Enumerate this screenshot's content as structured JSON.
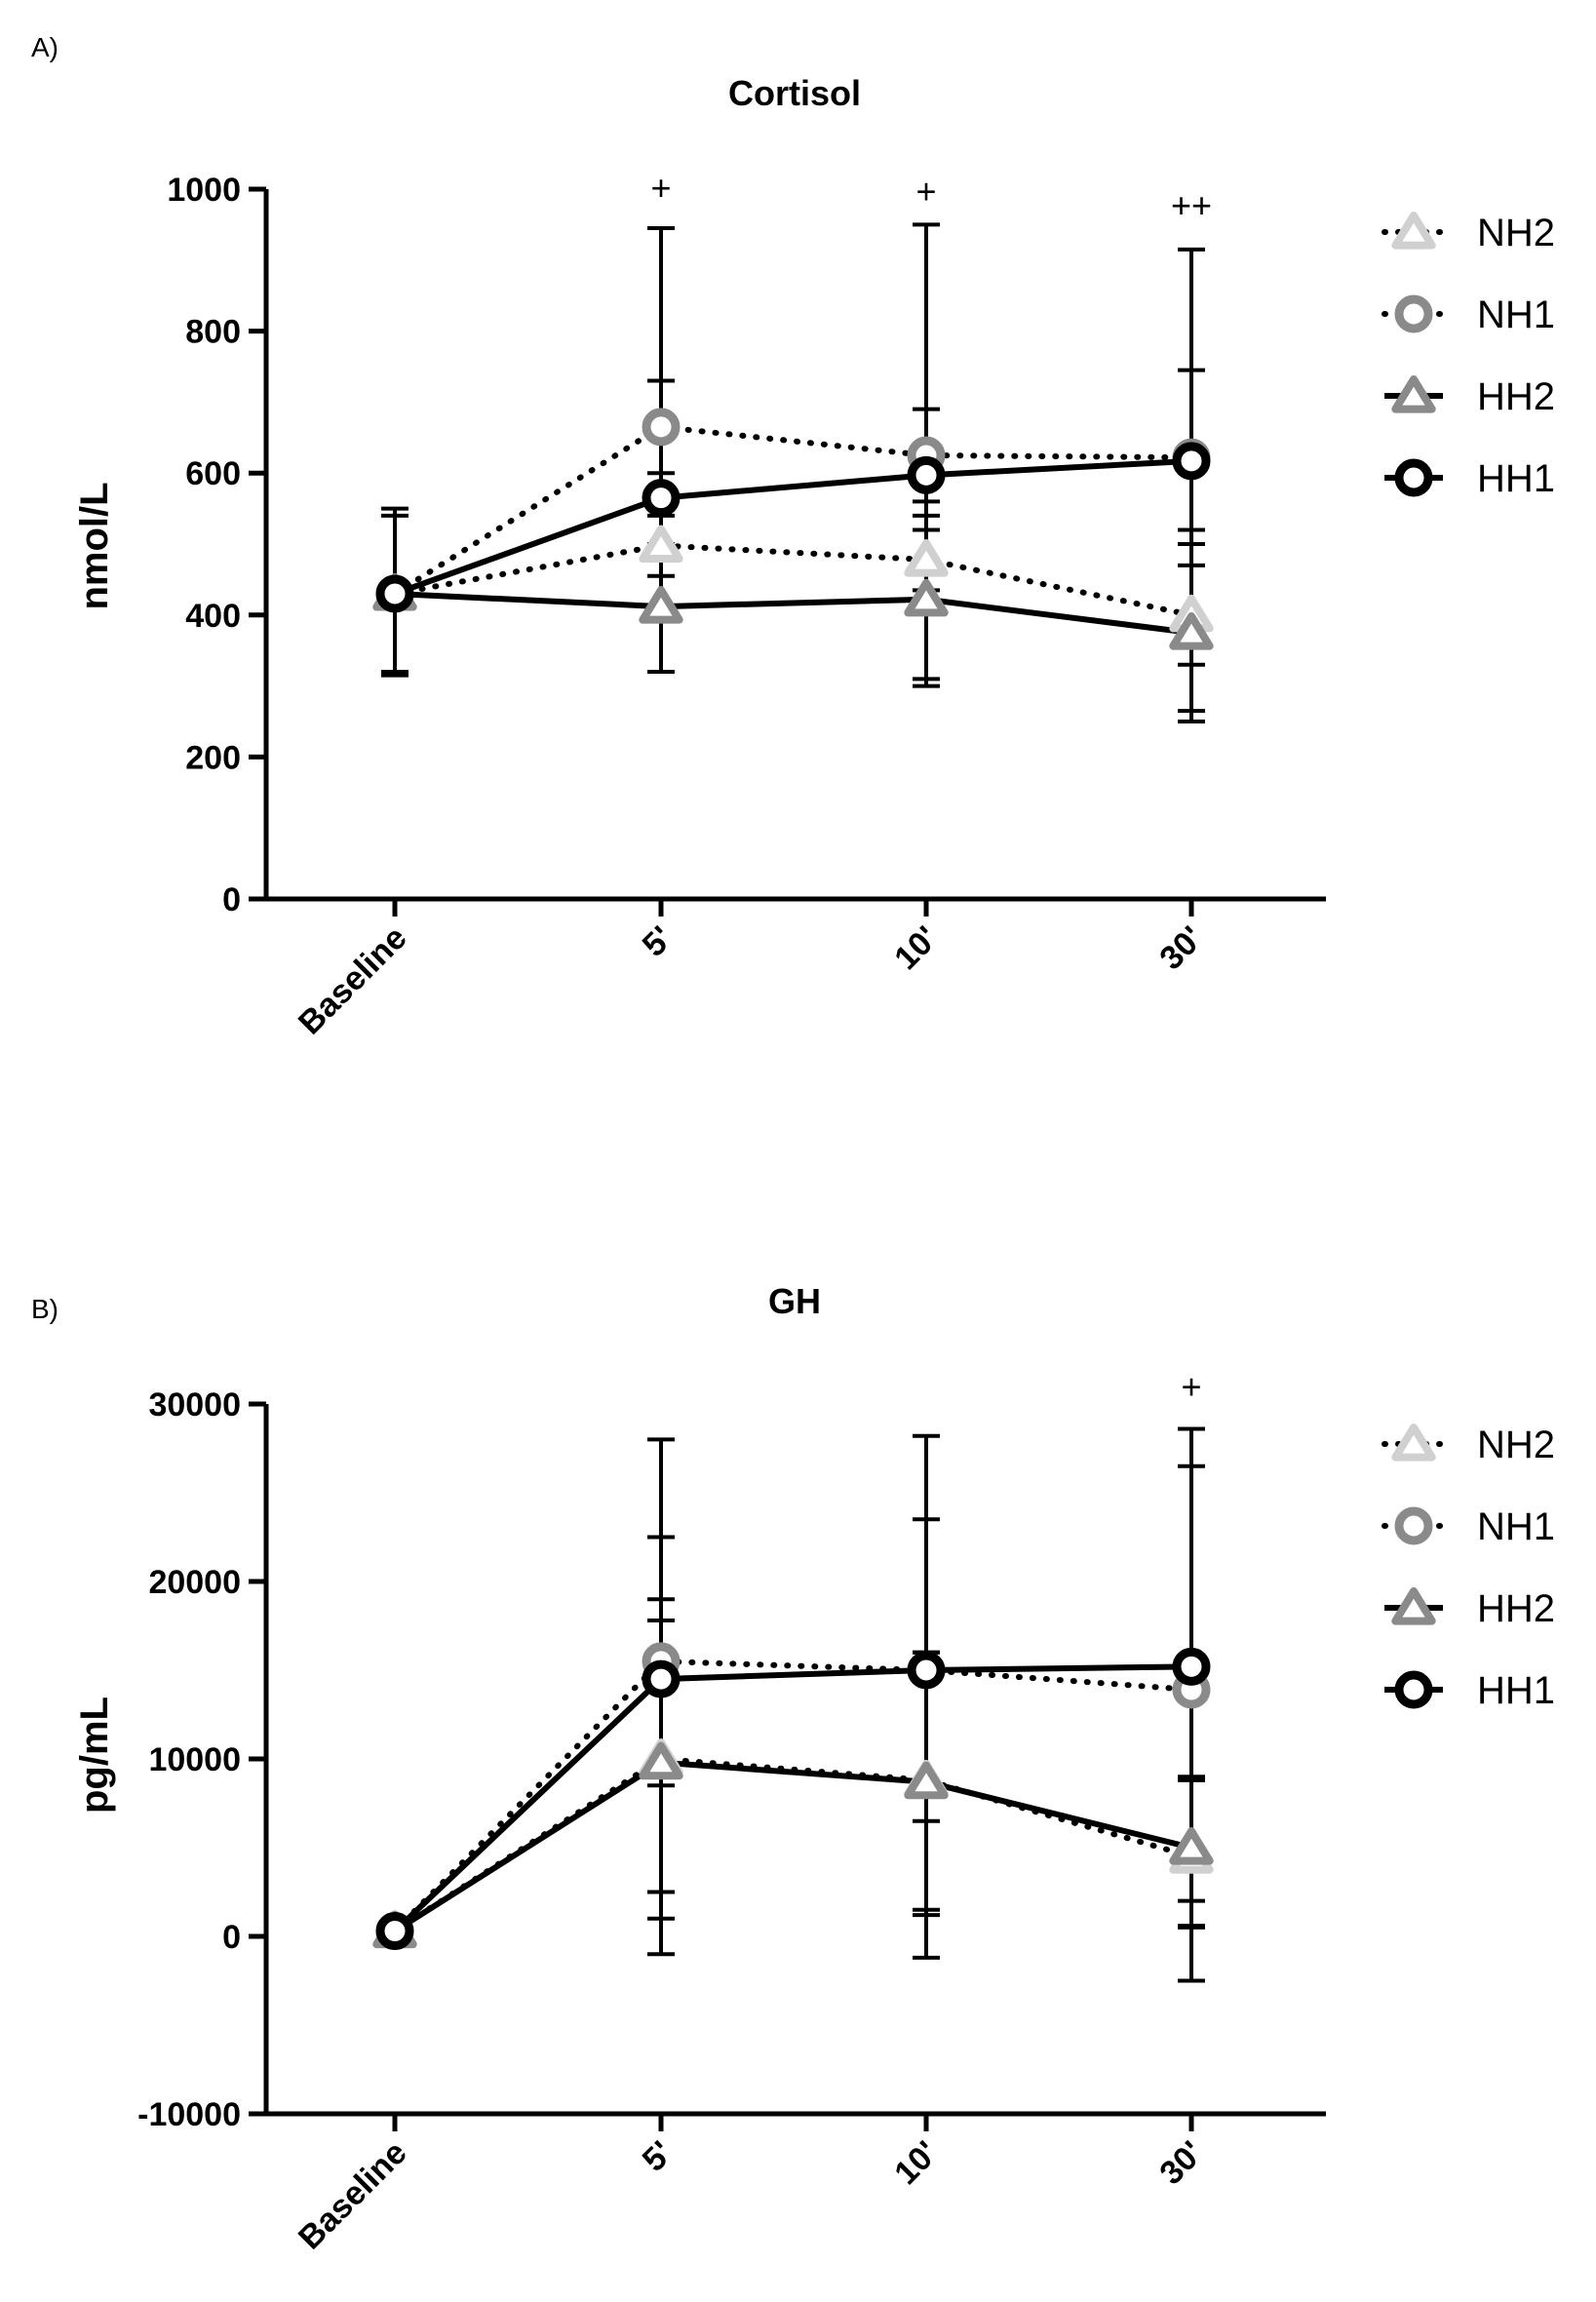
{
  "chart_data": [
    {
      "panel_label": "A)",
      "type": "line",
      "title": "Cortisol",
      "xlabel": "",
      "ylabel": "nmol/L",
      "ylim": [
        0,
        1000
      ],
      "yticks": [
        "0",
        "200",
        "400",
        "600",
        "800",
        "1000"
      ],
      "ytick_values": [
        0,
        200,
        400,
        600,
        800,
        1000
      ],
      "categories": [
        "Baseline",
        "5'",
        "10'",
        "30'"
      ],
      "annotations": [
        {
          "category": "5'",
          "text": "+",
          "y": 985
        },
        {
          "category": "10'",
          "text": "+",
          "y": 980
        },
        {
          "category": "30'",
          "text": "++",
          "y": 960
        }
      ],
      "series": [
        {
          "name": "NH2",
          "marker": "triangle",
          "line": "dotted",
          "color": "#d0d0d0",
          "values": [
            430,
            498,
            478,
            400
          ],
          "err": [
            [
              415,
              445
            ],
            [
              455,
              540
            ],
            [
              435,
              520
            ],
            [
              330,
              470
            ]
          ]
        },
        {
          "name": "NH1",
          "marker": "circle",
          "line": "dotted",
          "color": "#8a8a8a",
          "values": [
            430,
            665,
            625,
            622
          ],
          "err": [
            [
              415,
              445
            ],
            [
              600,
              730
            ],
            [
              540,
              690
            ],
            [
              500,
              745
            ]
          ]
        },
        {
          "name": "HH2",
          "marker": "triangle",
          "line": "solid",
          "color": "#8a8a8a",
          "values": [
            430,
            412,
            422,
            375
          ],
          "err": [
            [
              320,
              540
            ],
            [
              320,
              500
            ],
            [
              300,
              560
            ],
            [
              250,
              520
            ]
          ]
        },
        {
          "name": "HH1",
          "marker": "circle",
          "line": "solid",
          "color": "#000000",
          "values": [
            430,
            565,
            597,
            617
          ],
          "err": [
            [
              315,
              550
            ],
            [
              320,
              945
            ],
            [
              310,
              950
            ],
            [
              265,
              915
            ]
          ]
        }
      ],
      "legend": [
        "NH2",
        "NH1",
        "HH2",
        "HH1"
      ],
      "legend_position": "right"
    },
    {
      "panel_label": "B)",
      "type": "line",
      "title": "GH",
      "xlabel": "",
      "ylabel": "pg/mL",
      "ylim": [
        -10000,
        30000
      ],
      "yticks": [
        "-10000",
        "0",
        "10000",
        "20000",
        "30000"
      ],
      "ytick_values": [
        -10000,
        0,
        10000,
        20000,
        30000
      ],
      "categories": [
        "Baseline",
        "5'",
        "10'",
        "30'"
      ],
      "annotations": [
        {
          "category": "30'",
          "text": "+",
          "y": 30300
        }
      ],
      "series": [
        {
          "name": "NH2",
          "marker": "triangle",
          "line": "dotted",
          "color": "#d0d0d0",
          "values": [
            300,
            10000,
            8800,
            4500
          ],
          "err": [
            [
              200,
              400
            ],
            [
              1000,
              19000
            ],
            [
              1500,
              16000
            ],
            [
              500,
              9000
            ]
          ]
        },
        {
          "name": "NH1",
          "marker": "circle",
          "line": "dotted",
          "color": "#8a8a8a",
          "values": [
            300,
            15500,
            15000,
            13900
          ],
          "err": [
            [
              200,
              400
            ],
            [
              8500,
              22500
            ],
            [
              6500,
              23500
            ],
            [
              2000,
              26500
            ]
          ]
        },
        {
          "name": "HH2",
          "marker": "triangle",
          "line": "solid",
          "color": "#8a8a8a",
          "values": [
            300,
            9800,
            8700,
            5000
          ],
          "err": [
            [
              200,
              400
            ],
            [
              2500,
              17800
            ],
            [
              1200,
              16000
            ],
            [
              600,
              8800
            ]
          ]
        },
        {
          "name": "HH1",
          "marker": "circle",
          "line": "solid",
          "color": "#000000",
          "values": [
            300,
            14500,
            15000,
            15200
          ],
          "err": [
            [
              200,
              400
            ],
            [
              -1000,
              28000
            ],
            [
              -1200,
              28200
            ],
            [
              -2500,
              28600
            ]
          ]
        }
      ],
      "legend": [
        "NH2",
        "NH1",
        "HH2",
        "HH1"
      ],
      "legend_position": "right"
    }
  ]
}
